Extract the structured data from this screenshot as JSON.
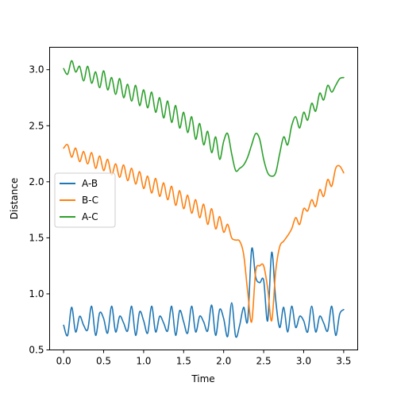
{
  "chart_data": {
    "type": "line",
    "title": "",
    "xlabel": "Time",
    "ylabel": "Distance",
    "xlim": [
      -0.175,
      3.675
    ],
    "ylim": [
      0.5,
      3.2
    ],
    "xticks": [
      0.0,
      0.5,
      1.0,
      1.5,
      2.0,
      2.5,
      3.0,
      3.5
    ],
    "xtick_labels": [
      "0.0",
      "0.5",
      "1.0",
      "1.5",
      "2.0",
      "2.5",
      "3.0",
      "3.5"
    ],
    "yticks": [
      0.5,
      1.0,
      1.5,
      2.0,
      2.5,
      3.0
    ],
    "ytick_labels": [
      "0.5",
      "1.0",
      "1.5",
      "2.0",
      "2.5",
      "3.0"
    ],
    "grid": false,
    "legend_position": "center-left",
    "series": [
      {
        "name": "A-B",
        "color": "#1f77b4",
        "x": [
          0.0,
          0.05,
          0.1,
          0.15,
          0.2,
          0.25,
          0.3,
          0.35,
          0.4,
          0.45,
          0.5,
          0.55,
          0.6,
          0.65,
          0.7,
          0.75,
          0.8,
          0.85,
          0.9,
          0.95,
          1.0,
          1.05,
          1.1,
          1.15,
          1.2,
          1.25,
          1.3,
          1.35,
          1.4,
          1.45,
          1.5,
          1.55,
          1.6,
          1.65,
          1.7,
          1.75,
          1.8,
          1.85,
          1.9,
          1.95,
          2.0,
          2.05,
          2.1,
          2.15,
          2.2,
          2.25,
          2.3,
          2.35,
          2.4,
          2.45,
          2.5,
          2.55,
          2.6,
          2.65,
          2.7,
          2.75,
          2.8,
          2.85,
          2.9,
          2.95,
          3.0,
          3.05,
          3.1,
          3.15,
          3.2,
          3.25,
          3.3,
          3.35,
          3.4,
          3.45,
          3.5
        ],
        "y": [
          0.72,
          0.63,
          0.88,
          0.66,
          0.8,
          0.72,
          0.68,
          0.89,
          0.63,
          0.83,
          0.78,
          0.65,
          0.89,
          0.66,
          0.8,
          0.74,
          0.67,
          0.89,
          0.63,
          0.84,
          0.76,
          0.65,
          0.89,
          0.66,
          0.8,
          0.74,
          0.67,
          0.89,
          0.63,
          0.85,
          0.75,
          0.65,
          0.89,
          0.66,
          0.8,
          0.75,
          0.67,
          0.9,
          0.63,
          0.86,
          0.78,
          0.62,
          0.92,
          0.62,
          0.72,
          0.88,
          0.76,
          1.4,
          1.15,
          1.1,
          1.12,
          0.76,
          1.37,
          0.95,
          0.7,
          0.88,
          0.66,
          0.89,
          0.7,
          0.8,
          0.76,
          0.66,
          0.89,
          0.66,
          0.8,
          0.74,
          0.67,
          0.89,
          0.63,
          0.82,
          0.86
        ]
      },
      {
        "name": "B-C",
        "color": "#ff7f0e",
        "x": [
          0.0,
          0.05,
          0.1,
          0.15,
          0.2,
          0.25,
          0.3,
          0.35,
          0.4,
          0.45,
          0.5,
          0.55,
          0.6,
          0.65,
          0.7,
          0.75,
          0.8,
          0.85,
          0.9,
          0.95,
          1.0,
          1.05,
          1.1,
          1.15,
          1.2,
          1.25,
          1.3,
          1.35,
          1.4,
          1.45,
          1.5,
          1.55,
          1.6,
          1.65,
          1.7,
          1.75,
          1.8,
          1.85,
          1.9,
          1.95,
          2.0,
          2.05,
          2.1,
          2.15,
          2.2,
          2.25,
          2.3,
          2.35,
          2.4,
          2.45,
          2.5,
          2.55,
          2.6,
          2.65,
          2.7,
          2.75,
          2.8,
          2.85,
          2.9,
          2.95,
          3.0,
          3.05,
          3.1,
          3.15,
          3.2,
          3.25,
          3.3,
          3.35,
          3.4,
          3.45,
          3.5
        ],
        "y": [
          2.3,
          2.33,
          2.22,
          2.3,
          2.18,
          2.27,
          2.16,
          2.26,
          2.12,
          2.23,
          2.1,
          2.2,
          2.06,
          2.16,
          2.04,
          2.15,
          2.01,
          2.12,
          1.98,
          2.09,
          1.94,
          2.05,
          1.9,
          2.03,
          1.87,
          1.99,
          1.84,
          1.96,
          1.79,
          1.92,
          1.76,
          1.88,
          1.72,
          1.84,
          1.68,
          1.8,
          1.62,
          1.76,
          1.58,
          1.69,
          1.55,
          1.62,
          1.5,
          1.48,
          1.47,
          1.35,
          1.02,
          0.75,
          1.2,
          1.25,
          1.25,
          1.05,
          0.76,
          1.2,
          1.42,
          1.47,
          1.52,
          1.58,
          1.68,
          1.62,
          1.76,
          1.74,
          1.84,
          1.78,
          1.93,
          1.87,
          2.02,
          1.96,
          2.12,
          2.14,
          2.08
        ]
      },
      {
        "name": "A-C",
        "color": "#2ca02c",
        "x": [
          0.0,
          0.05,
          0.1,
          0.15,
          0.2,
          0.25,
          0.3,
          0.35,
          0.4,
          0.45,
          0.5,
          0.55,
          0.6,
          0.65,
          0.7,
          0.75,
          0.8,
          0.85,
          0.9,
          0.95,
          1.0,
          1.05,
          1.1,
          1.15,
          1.2,
          1.25,
          1.3,
          1.35,
          1.4,
          1.45,
          1.5,
          1.55,
          1.6,
          1.65,
          1.7,
          1.75,
          1.8,
          1.85,
          1.9,
          1.95,
          2.0,
          2.05,
          2.1,
          2.15,
          2.2,
          2.25,
          2.3,
          2.35,
          2.4,
          2.45,
          2.5,
          2.55,
          2.6,
          2.65,
          2.7,
          2.75,
          2.8,
          2.85,
          2.9,
          2.95,
          3.0,
          3.05,
          3.1,
          3.15,
          3.2,
          3.25,
          3.3,
          3.35,
          3.4,
          3.45,
          3.5
        ],
        "y": [
          3.01,
          2.96,
          3.08,
          2.98,
          3.03,
          2.9,
          3.03,
          2.88,
          2.98,
          2.84,
          2.99,
          2.82,
          2.93,
          2.78,
          2.92,
          2.75,
          2.87,
          2.72,
          2.86,
          2.68,
          2.82,
          2.66,
          2.8,
          2.62,
          2.75,
          2.57,
          2.72,
          2.53,
          2.68,
          2.48,
          2.62,
          2.44,
          2.58,
          2.38,
          2.52,
          2.33,
          2.45,
          2.26,
          2.4,
          2.2,
          2.36,
          2.43,
          2.25,
          2.1,
          2.12,
          2.15,
          2.22,
          2.33,
          2.43,
          2.38,
          2.2,
          2.08,
          2.05,
          2.08,
          2.25,
          2.4,
          2.33,
          2.5,
          2.58,
          2.48,
          2.62,
          2.55,
          2.7,
          2.63,
          2.79,
          2.73,
          2.86,
          2.8,
          2.86,
          2.92,
          2.93
        ]
      }
    ]
  }
}
